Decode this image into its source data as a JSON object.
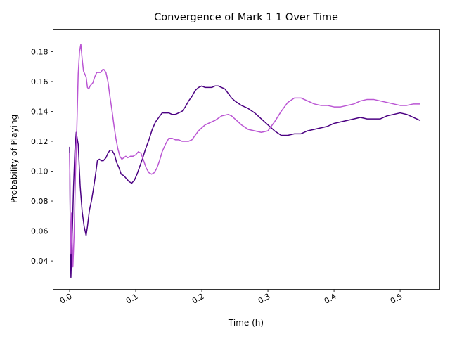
{
  "chart_data": {
    "type": "line",
    "title": "Convergence of Mark 1 1 Over Time",
    "xlabel": "Time (h)",
    "ylabel": "Probability of Playing",
    "xlim": [
      -0.025,
      0.56
    ],
    "ylim": [
      0.021,
      0.195
    ],
    "x_ticks": [
      0.0,
      0.1,
      0.2,
      0.3,
      0.4,
      0.5
    ],
    "x_tick_labels": [
      "0.0",
      "0.1",
      "0.2",
      "0.3",
      "0.4",
      "0.5"
    ],
    "y_ticks": [
      0.04,
      0.06,
      0.08,
      0.1,
      0.12,
      0.14,
      0.16,
      0.18
    ],
    "y_tick_labels": [
      "0.04",
      "0.06",
      "0.08",
      "0.10",
      "0.12",
      "0.14",
      "0.16",
      "0.18"
    ],
    "grid": false,
    "legend": null,
    "series": [
      {
        "color": "#4b0082",
        "x": [
          0.0,
          0.001,
          0.002,
          0.004,
          0.006,
          0.008,
          0.01,
          0.013,
          0.016,
          0.019,
          0.022,
          0.025,
          0.027,
          0.03,
          0.033,
          0.036,
          0.039,
          0.042,
          0.045,
          0.048,
          0.051,
          0.055,
          0.058,
          0.061,
          0.064,
          0.068,
          0.071,
          0.075,
          0.078,
          0.082,
          0.086,
          0.09,
          0.094,
          0.098,
          0.102,
          0.106,
          0.11,
          0.115,
          0.12,
          0.125,
          0.13,
          0.135,
          0.14,
          0.145,
          0.15,
          0.155,
          0.16,
          0.165,
          0.17,
          0.175,
          0.18,
          0.185,
          0.19,
          0.195,
          0.2,
          0.205,
          0.21,
          0.215,
          0.22,
          0.225,
          0.23,
          0.235,
          0.24,
          0.245,
          0.25,
          0.26,
          0.27,
          0.28,
          0.29,
          0.3,
          0.31,
          0.32,
          0.33,
          0.34,
          0.35,
          0.36,
          0.37,
          0.38,
          0.39,
          0.4,
          0.41,
          0.42,
          0.43,
          0.44,
          0.45,
          0.46,
          0.47,
          0.48,
          0.49,
          0.5,
          0.51,
          0.52,
          0.53
        ],
        "y": [
          0.116,
          0.061,
          0.029,
          0.058,
          0.09,
          0.114,
          0.126,
          0.118,
          0.09,
          0.073,
          0.063,
          0.057,
          0.063,
          0.074,
          0.08,
          0.088,
          0.097,
          0.107,
          0.108,
          0.107,
          0.107,
          0.109,
          0.112,
          0.114,
          0.114,
          0.111,
          0.106,
          0.102,
          0.098,
          0.097,
          0.095,
          0.093,
          0.092,
          0.094,
          0.098,
          0.103,
          0.108,
          0.115,
          0.121,
          0.128,
          0.133,
          0.136,
          0.139,
          0.139,
          0.139,
          0.138,
          0.138,
          0.139,
          0.14,
          0.143,
          0.147,
          0.15,
          0.154,
          0.156,
          0.157,
          0.156,
          0.156,
          0.156,
          0.157,
          0.157,
          0.156,
          0.155,
          0.152,
          0.149,
          0.147,
          0.144,
          0.142,
          0.139,
          0.135,
          0.131,
          0.127,
          0.124,
          0.124,
          0.125,
          0.125,
          0.127,
          0.128,
          0.129,
          0.13,
          0.132,
          0.133,
          0.134,
          0.135,
          0.136,
          0.135,
          0.135,
          0.135,
          0.137,
          0.138,
          0.139,
          0.138,
          0.136,
          0.134
        ]
      },
      {
        "color": "#ba55d3",
        "x": [
          0.0,
          0.001,
          0.002,
          0.003,
          0.004,
          0.005,
          0.007,
          0.009,
          0.011,
          0.013,
          0.015,
          0.017,
          0.019,
          0.021,
          0.023,
          0.025,
          0.027,
          0.029,
          0.031,
          0.033,
          0.035,
          0.038,
          0.041,
          0.044,
          0.047,
          0.05,
          0.052,
          0.055,
          0.058,
          0.061,
          0.064,
          0.067,
          0.07,
          0.073,
          0.076,
          0.079,
          0.082,
          0.085,
          0.088,
          0.092,
          0.096,
          0.1,
          0.104,
          0.108,
          0.112,
          0.116,
          0.12,
          0.124,
          0.128,
          0.132,
          0.136,
          0.14,
          0.145,
          0.15,
          0.155,
          0.16,
          0.165,
          0.17,
          0.175,
          0.18,
          0.185,
          0.19,
          0.195,
          0.2,
          0.205,
          0.21,
          0.22,
          0.23,
          0.24,
          0.245,
          0.25,
          0.26,
          0.27,
          0.28,
          0.29,
          0.3,
          0.31,
          0.32,
          0.33,
          0.34,
          0.35,
          0.36,
          0.37,
          0.38,
          0.39,
          0.4,
          0.41,
          0.42,
          0.43,
          0.44,
          0.45,
          0.46,
          0.47,
          0.48,
          0.49,
          0.5,
          0.51,
          0.52,
          0.53
        ],
        "y": [
          0.112,
          0.068,
          0.045,
          0.072,
          0.052,
          0.036,
          0.06,
          0.1,
          0.13,
          0.165,
          0.18,
          0.185,
          0.175,
          0.167,
          0.165,
          0.163,
          0.156,
          0.155,
          0.157,
          0.158,
          0.159,
          0.163,
          0.166,
          0.166,
          0.166,
          0.168,
          0.168,
          0.166,
          0.16,
          0.15,
          0.141,
          0.131,
          0.122,
          0.115,
          0.11,
          0.108,
          0.109,
          0.11,
          0.109,
          0.11,
          0.11,
          0.111,
          0.113,
          0.112,
          0.107,
          0.102,
          0.099,
          0.098,
          0.099,
          0.102,
          0.107,
          0.113,
          0.118,
          0.122,
          0.122,
          0.121,
          0.121,
          0.12,
          0.12,
          0.12,
          0.121,
          0.124,
          0.127,
          0.129,
          0.131,
          0.132,
          0.134,
          0.137,
          0.138,
          0.137,
          0.135,
          0.131,
          0.128,
          0.127,
          0.126,
          0.127,
          0.133,
          0.14,
          0.146,
          0.149,
          0.149,
          0.147,
          0.145,
          0.144,
          0.144,
          0.143,
          0.143,
          0.144,
          0.145,
          0.147,
          0.148,
          0.148,
          0.147,
          0.146,
          0.145,
          0.144,
          0.144,
          0.145,
          0.145
        ]
      }
    ]
  }
}
